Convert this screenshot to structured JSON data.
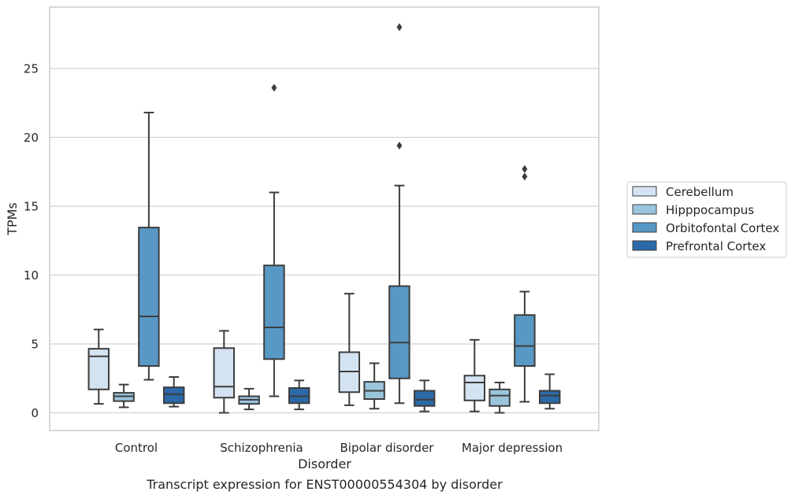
{
  "chart_data": {
    "type": "box",
    "xlabel": "Disorder",
    "ylabel": "TPMs",
    "caption": "Transcript expression for ENST00000554304 by disorder",
    "ylim": [
      -1.3,
      28.9
    ],
    "yticks": [
      0,
      5,
      10,
      15,
      20,
      25
    ],
    "grid": true,
    "legend_position": "right",
    "categories": [
      "Control",
      "Schizophrenia",
      "Bipolar disorder",
      "Major depression"
    ],
    "series": [
      {
        "name": "Cerebellum",
        "color": "#d3e3f1",
        "boxes": [
          {
            "whisker_low": 0.65,
            "q1": 1.7,
            "median": 4.1,
            "q3": 4.65,
            "whisker_high": 6.05,
            "outliers": []
          },
          {
            "whisker_low": 0.0,
            "q1": 1.1,
            "median": 1.9,
            "q3": 4.7,
            "whisker_high": 5.95,
            "outliers": []
          },
          {
            "whisker_low": 0.55,
            "q1": 1.5,
            "median": 3.0,
            "q3": 4.4,
            "whisker_high": 8.65,
            "outliers": []
          },
          {
            "whisker_low": 0.1,
            "q1": 0.9,
            "median": 2.2,
            "q3": 2.7,
            "whisker_high": 5.3,
            "outliers": []
          }
        ]
      },
      {
        "name": "Hipppocampus",
        "color": "#9bc5dd",
        "boxes": [
          {
            "whisker_low": 0.4,
            "q1": 0.85,
            "median": 1.2,
            "q3": 1.45,
            "whisker_high": 2.05,
            "outliers": []
          },
          {
            "whisker_low": 0.25,
            "q1": 0.65,
            "median": 0.95,
            "q3": 1.2,
            "whisker_high": 1.75,
            "outliers": []
          },
          {
            "whisker_low": 0.3,
            "q1": 1.0,
            "median": 1.6,
            "q3": 2.25,
            "whisker_high": 3.6,
            "outliers": []
          },
          {
            "whisker_low": 0.0,
            "q1": 0.5,
            "median": 1.25,
            "q3": 1.7,
            "whisker_high": 2.2,
            "outliers": []
          }
        ]
      },
      {
        "name": "Orbitofontal Cortex",
        "color": "#5898c5",
        "boxes": [
          {
            "whisker_low": 2.4,
            "q1": 3.4,
            "median": 7.0,
            "q3": 13.45,
            "whisker_high": 21.8,
            "outliers": []
          },
          {
            "whisker_low": 1.2,
            "q1": 3.9,
            "median": 6.2,
            "q3": 10.7,
            "whisker_high": 16.0,
            "outliers": [
              23.6
            ]
          },
          {
            "whisker_low": 0.7,
            "q1": 2.5,
            "median": 5.1,
            "q3": 9.2,
            "whisker_high": 16.5,
            "outliers": [
              19.4,
              28.0
            ]
          },
          {
            "whisker_low": 0.8,
            "q1": 3.4,
            "median": 4.85,
            "q3": 7.1,
            "whisker_high": 8.8,
            "outliers": [
              17.15,
              17.7
            ]
          }
        ]
      },
      {
        "name": "Prefrontal Cortex",
        "color": "#2b69a8",
        "boxes": [
          {
            "whisker_low": 0.45,
            "q1": 0.7,
            "median": 1.35,
            "q3": 1.85,
            "whisker_high": 2.6,
            "outliers": []
          },
          {
            "whisker_low": 0.25,
            "q1": 0.7,
            "median": 1.2,
            "q3": 1.8,
            "whisker_high": 2.35,
            "outliers": []
          },
          {
            "whisker_low": 0.1,
            "q1": 0.5,
            "median": 0.95,
            "q3": 1.6,
            "whisker_high": 2.35,
            "outliers": []
          },
          {
            "whisker_low": 0.3,
            "q1": 0.7,
            "median": 1.25,
            "q3": 1.6,
            "whisker_high": 2.8,
            "outliers": []
          }
        ]
      }
    ]
  },
  "colors": {
    "grid": "#d2d2d2",
    "frame": "#cccccc",
    "box_edge": "#3d3d3d",
    "text": "#262626"
  }
}
